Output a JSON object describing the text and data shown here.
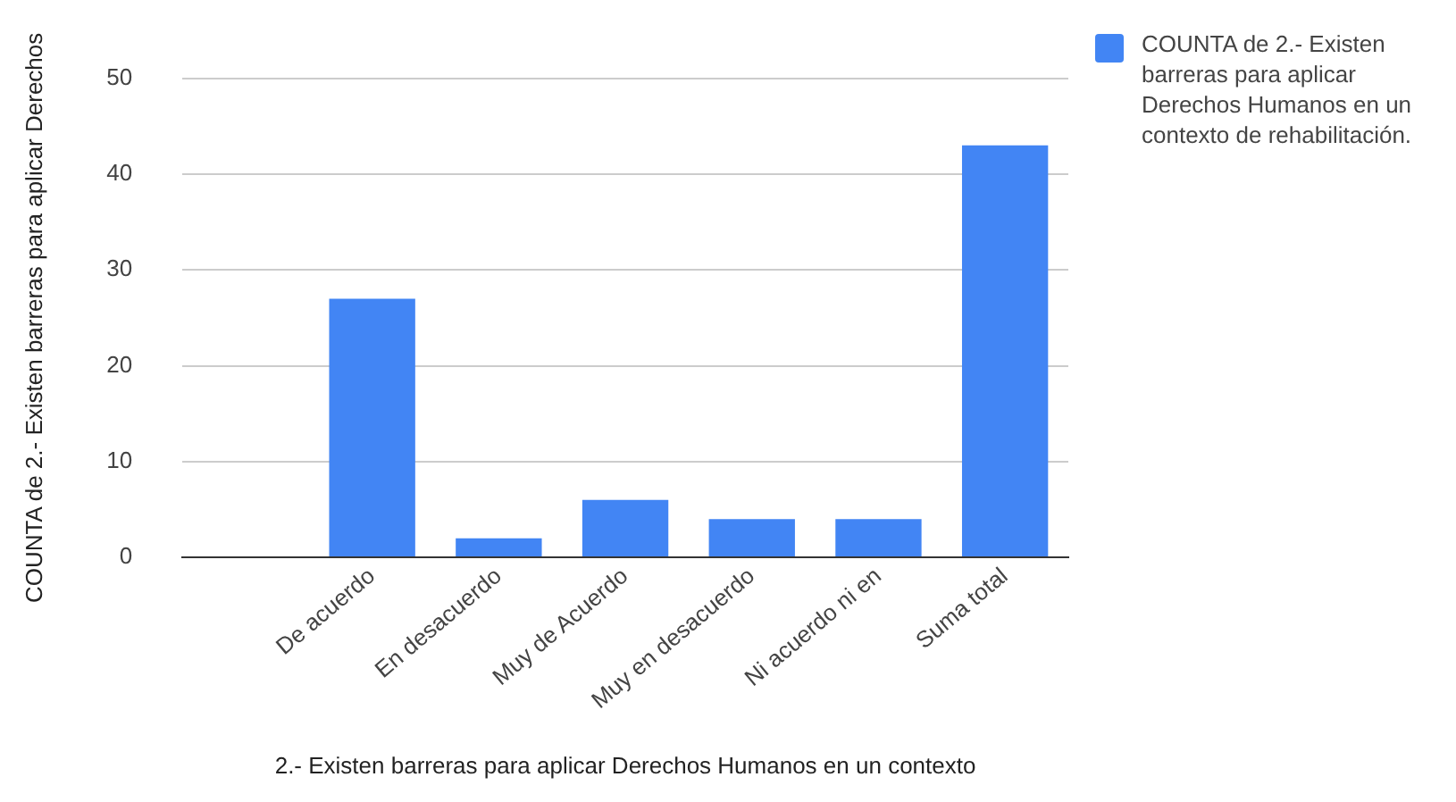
{
  "chart_data": {
    "type": "bar",
    "xlabel": "2.- Existen barreras para aplicar Derechos Humanos en un contexto",
    "ylabel": "COUNTA de 2.- Existen barreras para aplicar Derechos",
    "categories": [
      null,
      "De acuerdo",
      "En desacuerdo",
      "Muy de Acuerdo",
      "Muy en desacuerdo",
      "Ni acuerdo ni en",
      "Suma total"
    ],
    "series": [
      {
        "name": "COUNTA de 2.- Existen barreras para aplicar Derechos Humanos en un contexto de rehabilitación.",
        "color": "#4285f4",
        "values": [
          null,
          27,
          2,
          6,
          4,
          4,
          43
        ]
      }
    ],
    "ylim": [
      0,
      50
    ],
    "yticks": [
      0,
      10,
      20,
      30,
      40,
      50
    ],
    "grid": "y",
    "legend": "right"
  }
}
